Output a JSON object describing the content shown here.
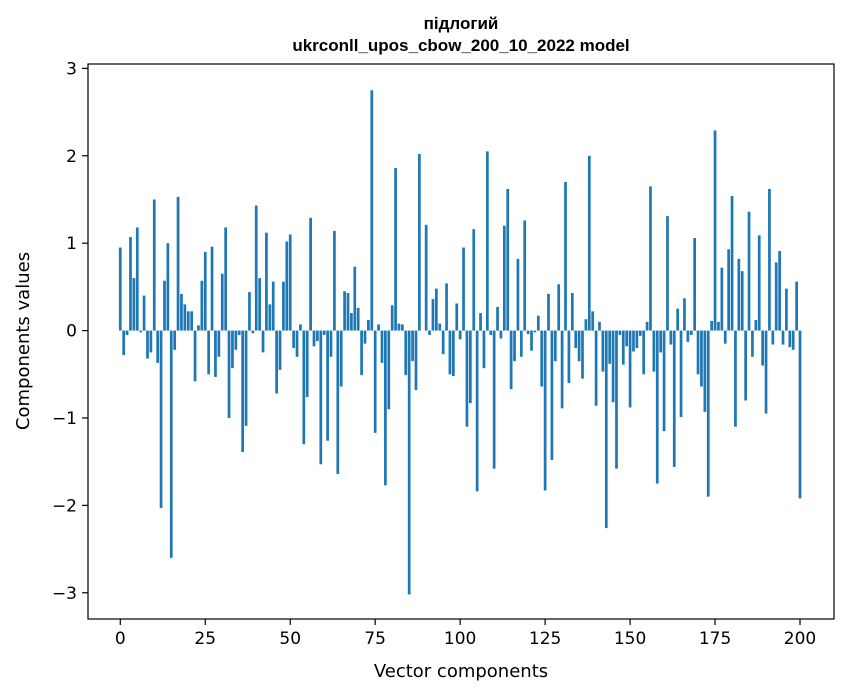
{
  "chart_data": {
    "type": "bar",
    "title_line1": "підлогий",
    "title_line2": "ukrconll_upos_cbow_200_10_2022 model",
    "xlabel": "Vector components",
    "ylabel": "Components values",
    "xlim": [
      -9.5,
      210
    ],
    "ylim": [
      -3.3,
      3.05
    ],
    "xticks": [
      0,
      25,
      50,
      75,
      100,
      125,
      150,
      175,
      200
    ],
    "yticks": [
      -3,
      -2,
      -1,
      0,
      1,
      2,
      3
    ],
    "ytick_labels": [
      "−3",
      "−2",
      "−1",
      "0",
      "1",
      "2",
      "3"
    ],
    "bar_color": "#1f77b4",
    "grid": false,
    "values": [
      0.95,
      -0.28,
      -0.05,
      1.07,
      0.6,
      1.18,
      -0.02,
      0.4,
      -0.32,
      -0.25,
      1.5,
      -0.37,
      -2.03,
      0.57,
      1.0,
      -2.6,
      -0.22,
      1.53,
      0.42,
      0.3,
      0.22,
      0.22,
      -0.58,
      0.06,
      0.57,
      0.9,
      -0.5,
      0.96,
      -0.53,
      -0.3,
      0.65,
      1.18,
      -1.0,
      -0.43,
      -0.22,
      -0.05,
      -1.39,
      -1.09,
      0.44,
      -0.03,
      1.43,
      0.6,
      -0.25,
      1.12,
      0.3,
      0.56,
      -0.72,
      -0.45,
      0.56,
      1.02,
      1.1,
      -0.2,
      -0.3,
      0.07,
      -1.3,
      -0.76,
      1.29,
      -0.18,
      -0.12,
      -1.53,
      -0.05,
      -1.26,
      -0.3,
      1.14,
      -1.64,
      -0.64,
      0.45,
      0.43,
      0.2,
      0.73,
      0.26,
      -0.51,
      -0.15,
      0.12,
      2.75,
      -1.17,
      0.07,
      -0.37,
      -1.77,
      -0.9,
      0.29,
      1.86,
      0.08,
      0.07,
      -0.51,
      -3.02,
      -0.35,
      -0.68,
      2.02,
      0.0,
      1.21,
      -0.05,
      0.36,
      0.48,
      0.08,
      -0.27,
      0.54,
      -0.5,
      -0.52,
      0.31,
      -0.1,
      0.95,
      -1.1,
      -0.83,
      1.16,
      -1.84,
      0.2,
      -0.43,
      2.05,
      -0.05,
      -1.58,
      0.27,
      -0.09,
      1.2,
      1.62,
      -0.67,
      -0.35,
      0.82,
      -0.3,
      1.26,
      -0.04,
      -0.23,
      -0.02,
      0.17,
      -0.64,
      -1.83,
      0.42,
      -1.48,
      -0.35,
      0.53,
      -0.89,
      1.7,
      -0.6,
      0.43,
      -0.2,
      -0.35,
      -0.55,
      0.13,
      2.0,
      0.22,
      -0.86,
      0.1,
      -0.47,
      -2.26,
      -0.38,
      -0.82,
      -1.58,
      -0.05,
      -0.39,
      -0.18,
      -0.88,
      -0.24,
      -0.2,
      -0.06,
      -0.5,
      0.1,
      1.65,
      -0.47,
      -1.75,
      -0.25,
      -1.15,
      1.31,
      -0.16,
      -1.56,
      0.25,
      -0.99,
      0.37,
      -0.13,
      -0.05,
      1.06,
      -0.5,
      -0.64,
      -0.93,
      -1.9,
      0.11,
      2.29,
      0.1,
      0.72,
      -0.15,
      0.93,
      1.54,
      -1.1,
      0.82,
      0.68,
      -0.8,
      1.36,
      -0.3,
      0.12,
      1.09,
      -0.4,
      -0.95,
      1.62,
      -0.16,
      0.78,
      0.91,
      -0.16,
      0.48,
      -0.19,
      -0.22,
      0.56,
      -1.92
    ]
  }
}
